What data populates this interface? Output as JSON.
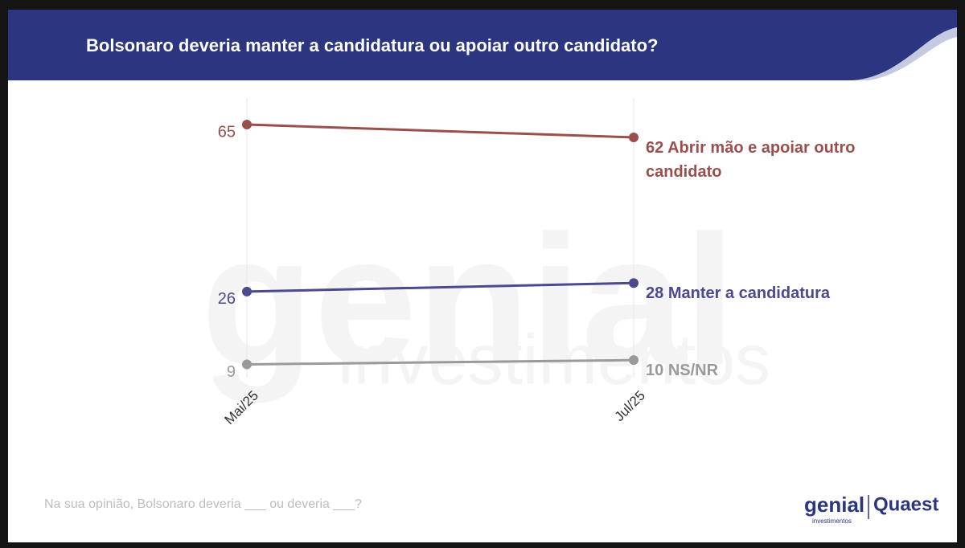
{
  "chart_data": {
    "type": "line",
    "title": "Bolsonaro deveria manter a candidatura ou apoiar outro candidato?",
    "categories": [
      "Mai/25",
      "Jul/25"
    ],
    "series": [
      {
        "name": "Abrir mão e apoiar outro candidato",
        "color": "#9a4f4c",
        "values": [
          65,
          62
        ]
      },
      {
        "name": "Manter a candidatura",
        "color": "#4b4a8e",
        "values": [
          26,
          28
        ]
      },
      {
        "name": "NS/NR",
        "color": "#9a9a9a",
        "values": [
          9,
          10
        ]
      }
    ],
    "ylim": [
      6,
      72
    ],
    "grid": true,
    "footnote": "Na sua opinião, Bolsonaro deveria ___ ou deveria ___?",
    "watermark": {
      "brand": "genial",
      "sub": "investimentos"
    },
    "logos": {
      "genial": "genial",
      "genial_sub": "investimentos",
      "quaest": "Quaest"
    }
  }
}
